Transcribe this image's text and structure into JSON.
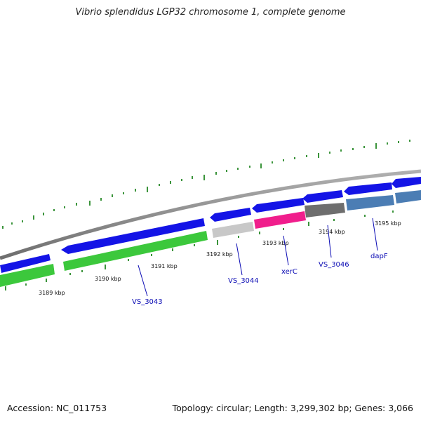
{
  "title": "Vibrio splendidus LGP32 chromosome 1, complete genome",
  "footer": {
    "accession": "Accession: NC_011753",
    "summary": "Topology: circular; Length: 3,299,302 bp; Genes: 3,066"
  },
  "colors": {
    "backbone": "#8a8a8a",
    "cds": "#1414e6",
    "gc_tick": "#0a7a0a",
    "label": "#0a0ab4",
    "green": "#3cc83c",
    "grey": "#c8c8c8",
    "magenta": "#f01e8c",
    "darkgrey": "#6e6e6e",
    "steelblue": "#4b7db4"
  },
  "tick_labels": [
    "3189 kbp",
    "3190 kbp",
    "3191 kbp",
    "3192 kbp",
    "3193 kbp",
    "3194 kbp",
    "3195 kbp"
  ],
  "gene_labels": [
    "VS_3043",
    "VS_3044",
    "xerC",
    "VS_3046",
    "dapF"
  ]
}
